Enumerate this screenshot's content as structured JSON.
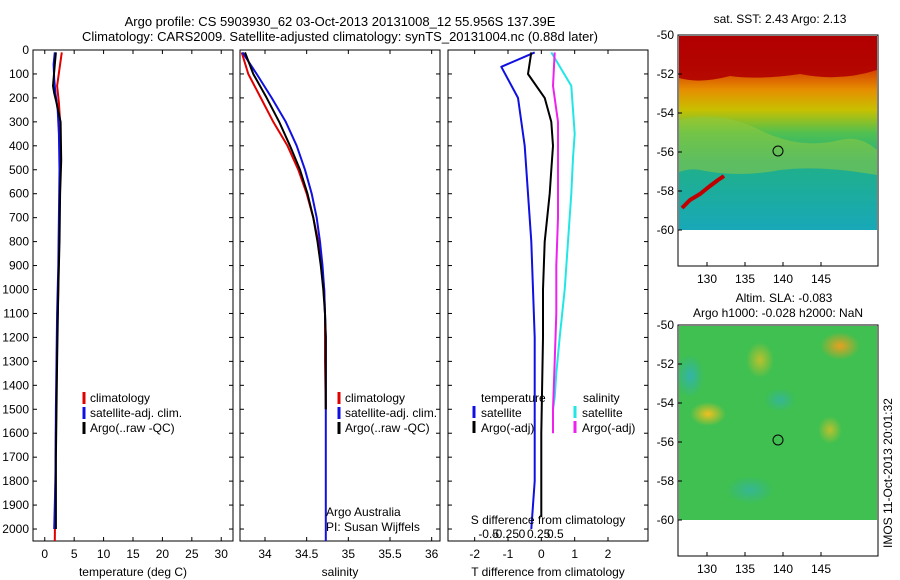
{
  "header": {
    "line1": "Argo profile: CS 5903930_62 03-Oct-2013 20131008_12 55.956S 137.39E",
    "line2": "Climatology: CARS2009. Satellite-adjusted climatology: synTS_20131004.nc (0.88d later)"
  },
  "colors": {
    "climatology": "#e00000",
    "satellite": "#1010e0",
    "argo": "#000000",
    "sat_salinity": "#22e6e6",
    "argo_salinity": "#ee22ee"
  },
  "chart_data": [
    {
      "type": "line",
      "panel": "temperature",
      "xlabel": "temperature (deg C)",
      "ylabel": "",
      "xlim": [
        -2,
        32
      ],
      "ylim": [
        2050,
        0
      ],
      "xticks": [
        0,
        5,
        10,
        15,
        20,
        25,
        30
      ],
      "yticks": [
        0,
        100,
        200,
        300,
        400,
        500,
        600,
        700,
        800,
        900,
        1000,
        1100,
        1200,
        1300,
        1400,
        1500,
        1600,
        1700,
        1800,
        1900,
        2000
      ],
      "legend": [
        "climatology",
        "satellite-adj. clim.",
        "Argo(..raw -QC)"
      ],
      "series": [
        {
          "name": "climatology",
          "x": [
            2.9,
            2.6,
            2.1,
            2.4,
            2.6,
            2.6,
            2.5,
            2.4,
            2.3,
            2.1,
            2.0,
            1.9,
            1.8,
            1.7
          ],
          "y": [
            10,
            60,
            150,
            220,
            300,
            400,
            600,
            800,
            1000,
            1200,
            1400,
            1600,
            1800,
            2050
          ]
        },
        {
          "name": "satellite-adj. clim.",
          "x": [
            1.7,
            1.5,
            1.6,
            1.8,
            2.2,
            2.4,
            2.5,
            2.4,
            2.3,
            2.1,
            2.0,
            1.9,
            1.8,
            1.6
          ],
          "y": [
            10,
            60,
            120,
            180,
            250,
            350,
            500,
            700,
            900,
            1100,
            1300,
            1500,
            1800,
            2000
          ]
        },
        {
          "name": "Argo(..raw -QC)",
          "x": [
            1.9,
            1.7,
            1.4,
            1.6,
            2.0,
            2.7,
            2.8,
            2.6,
            2.5,
            2.3,
            2.1,
            1.9,
            1.9
          ],
          "y": [
            10,
            60,
            150,
            180,
            220,
            300,
            460,
            600,
            800,
            1000,
            1300,
            1700,
            2000
          ]
        }
      ]
    },
    {
      "type": "line",
      "panel": "salinity",
      "xlabel": "salinity",
      "ylabel": "",
      "xlim": [
        33.7,
        36.1
      ],
      "ylim": [
        2050,
        0
      ],
      "xticks": [
        34,
        34.5,
        35,
        35.5,
        36
      ],
      "legend": [
        "climatology",
        "satellite-adj. clim.",
        "Argo(..raw -QC)"
      ],
      "annotation": [
        "Argo Australia",
        "PI: Susan Wijffels"
      ],
      "series": [
        {
          "name": "climatology",
          "x": [
            33.72,
            33.8,
            33.95,
            34.1,
            34.27,
            34.4,
            34.5,
            34.58,
            34.64,
            34.68,
            34.71,
            34.72,
            34.72,
            34.72,
            34.73
          ],
          "y": [
            10,
            100,
            200,
            300,
            400,
            500,
            600,
            700,
            800,
            900,
            1000,
            1100,
            1200,
            1300,
            1500
          ]
        },
        {
          "name": "satellite-adj. clim.",
          "x": [
            33.73,
            33.9,
            34.08,
            34.25,
            34.38,
            34.48,
            34.56,
            34.62,
            34.66,
            34.69,
            34.71,
            34.72,
            34.73,
            34.73,
            34.73,
            34.73
          ],
          "y": [
            10,
            100,
            200,
            300,
            400,
            500,
            600,
            700,
            800,
            900,
            1000,
            1100,
            1200,
            1400,
            1600,
            2050
          ]
        },
        {
          "name": "Argo(..raw -QC)",
          "x": [
            33.76,
            33.86,
            34.02,
            34.17,
            34.3,
            34.42,
            34.51,
            34.58,
            34.63,
            34.67,
            34.7,
            34.72,
            34.73,
            34.73
          ],
          "y": [
            10,
            100,
            200,
            300,
            400,
            500,
            600,
            700,
            800,
            900,
            1000,
            1100,
            1200,
            1500
          ]
        }
      ]
    },
    {
      "type": "line",
      "panel": "difference",
      "xlabel": "T difference from climatology",
      "xlabel2": "S difference from climatology",
      "xlim": [
        -2.8,
        3.2
      ],
      "ylim": [
        2050,
        0
      ],
      "xticks": [
        -2,
        -1,
        0,
        1,
        2
      ],
      "xticks_s": [
        -0.5,
        -0.25,
        0,
        0.25,
        0.5
      ],
      "legend_headers": [
        "temperature",
        "salinity"
      ],
      "legend": [
        "satellite",
        "Argo(-adj)",
        "satellite",
        "Argo(-adj)"
      ],
      "series": [
        {
          "name": "satellite",
          "x": [
            -0.2,
            -1.2,
            -0.7,
            -0.5,
            -0.4,
            -0.3,
            -0.25,
            -0.2,
            -0.2,
            -0.2,
            -0.2,
            -0.25,
            -0.3
          ],
          "y": [
            10,
            70,
            200,
            400,
            600,
            800,
            1000,
            1200,
            1400,
            1600,
            1800,
            1900,
            2000
          ]
        },
        {
          "name": "Argo(-adj)",
          "x": [
            -0.3,
            -0.4,
            0.1,
            0.3,
            0.35,
            0.3,
            0.25,
            0.1,
            0.05,
            0.05,
            0.0,
            0.0,
            0.0
          ],
          "y": [
            10,
            100,
            200,
            300,
            400,
            500,
            600,
            800,
            1000,
            1200,
            1600,
            1800,
            1950
          ]
        },
        {
          "name": "satellite",
          "x": [
            0.3,
            0.9,
            0.95,
            1.0,
            0.95,
            0.9,
            0.8,
            0.7,
            0.55,
            0.45,
            0.4,
            0.35
          ],
          "y": [
            10,
            150,
            250,
            350,
            450,
            600,
            800,
            1000,
            1200,
            1350,
            1450,
            1500
          ]
        },
        {
          "name": "Argo(-adj)",
          "x": [
            0.4,
            0.35,
            0.5,
            0.5,
            0.5,
            0.45,
            0.45,
            0.4,
            0.35,
            0.35
          ],
          "y": [
            10,
            150,
            300,
            500,
            700,
            900,
            1100,
            1300,
            1500,
            1600
          ]
        }
      ]
    }
  ],
  "maps": {
    "sst": {
      "title": "sat. SST: 2.43 Argo: 2.13",
      "yticks": [
        "-50",
        "-52",
        "-54",
        "-56",
        "-58",
        "-60"
      ],
      "xticks": [
        "130",
        "135",
        "140",
        "145"
      ]
    },
    "sla": {
      "title1": "Altim. SLA: -0.083",
      "title2": "Argo h1000: -0.028 h2000: NaN",
      "yticks": [
        "-50",
        "-52",
        "-54",
        "-56",
        "-58",
        "-60"
      ],
      "xticks": [
        "130",
        "135",
        "140",
        "145"
      ]
    },
    "stamp": "IMOS 11-Oct-2013 20:01:32"
  }
}
